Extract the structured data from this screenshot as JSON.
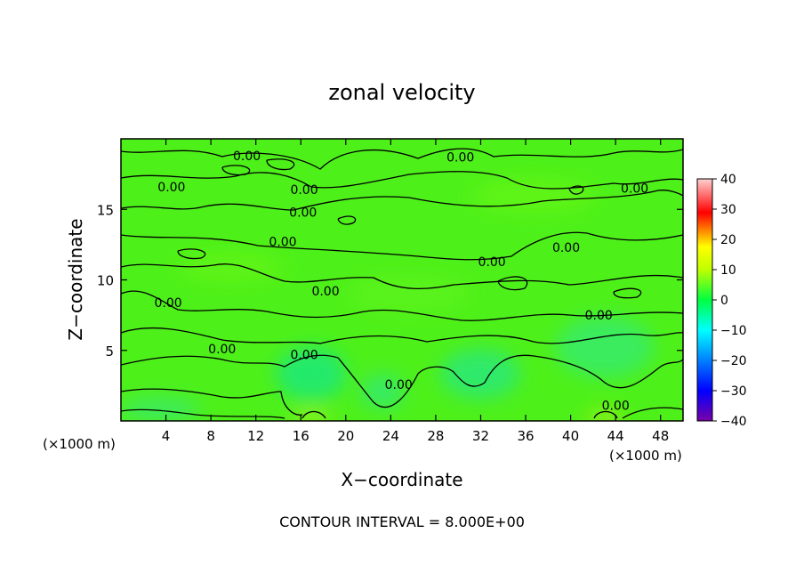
{
  "chart_data": {
    "type": "heatmap",
    "title": "zonal velocity",
    "xlabel": "X−coordinate",
    "ylabel": "Z−coordinate",
    "x_unit": "(×1000 m)",
    "y_unit": "(×1000 m)",
    "xlim": [
      0,
      50
    ],
    "ylim": [
      0,
      20
    ],
    "x_ticks": [
      4,
      8,
      12,
      16,
      20,
      24,
      28,
      32,
      36,
      40,
      44,
      48
    ],
    "y_ticks": [
      5,
      10,
      15
    ],
    "footer": "CONTOUR INTERVAL = 8.000E+00",
    "contour_level": "0.00",
    "contour_labels": [
      {
        "text": "0.00",
        "x": 11.2,
        "y": 18.8
      },
      {
        "text": "0.00",
        "x": 30.2,
        "y": 18.7
      },
      {
        "text": "0.00",
        "x": 4.5,
        "y": 16.6
      },
      {
        "text": "0.00",
        "x": 16.3,
        "y": 16.4
      },
      {
        "text": "0.00",
        "x": 45.7,
        "y": 16.5
      },
      {
        "text": "0.00",
        "x": 16.2,
        "y": 14.8
      },
      {
        "text": "0.00",
        "x": 14.4,
        "y": 12.7
      },
      {
        "text": "0.00",
        "x": 39.6,
        "y": 12.3
      },
      {
        "text": "0.00",
        "x": 33.0,
        "y": 11.3
      },
      {
        "text": "0.00",
        "x": 18.2,
        "y": 9.2
      },
      {
        "text": "0.00",
        "x": 4.2,
        "y": 8.4
      },
      {
        "text": "0.00",
        "x": 42.5,
        "y": 7.5
      },
      {
        "text": "0.00",
        "x": 9.0,
        "y": 5.1
      },
      {
        "text": "0.00",
        "x": 16.3,
        "y": 4.7
      },
      {
        "text": "0.00",
        "x": 24.7,
        "y": 2.6
      },
      {
        "text": "0.00",
        "x": 44.0,
        "y": 1.1
      }
    ],
    "colorbar": {
      "ticks": [
        40,
        30,
        20,
        10,
        0,
        -10,
        -20,
        -30,
        -40
      ],
      "range": [
        -40,
        40
      ],
      "colors": [
        "#7a00a8",
        "#0000ff",
        "#00ffff",
        "#00ff00",
        "#ffff00",
        "#ff0000",
        "#ffd0d0"
      ]
    }
  }
}
